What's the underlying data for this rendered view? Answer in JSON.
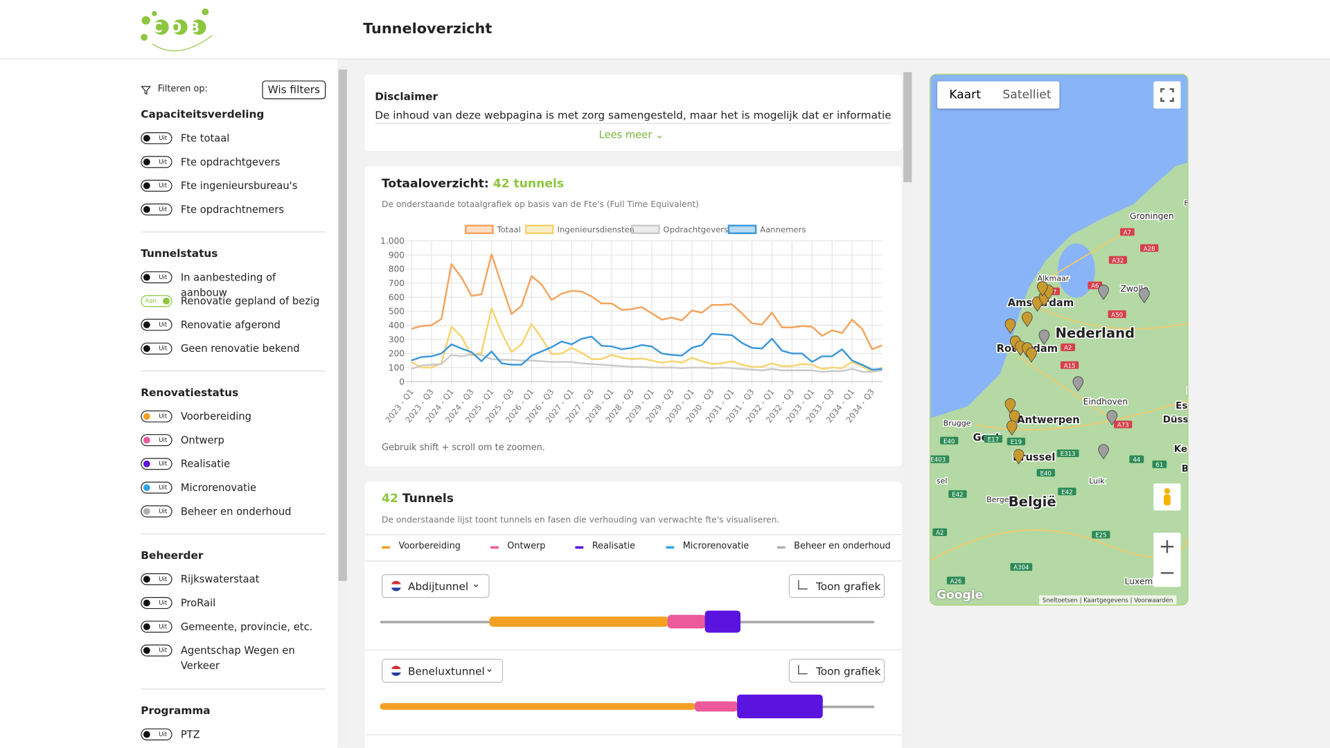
{
  "header": {
    "logo": "COB",
    "title": "Tunneloverzicht"
  },
  "sidebar": {
    "filter_label": "Filteren op:",
    "clear_button": "Wis filters",
    "sections": [
      {
        "title": "Capaciteitsverdeling",
        "items": [
          {
            "state": "Uit",
            "label": "Fte totaal"
          },
          {
            "state": "Uit",
            "label": "Fte opdrachtgevers"
          },
          {
            "state": "Uit",
            "label": "Fte ingenieursbureau's"
          },
          {
            "state": "Uit",
            "label": "Fte opdrachtnemers"
          }
        ]
      },
      {
        "title": "Tunnelstatus",
        "items": [
          {
            "state": "Uit",
            "label": "In aanbesteding of aanbouw"
          },
          {
            "state": "Aan",
            "label": "Renovatie gepland of bezig"
          },
          {
            "state": "Uit",
            "label": "Renovatie afgerond"
          },
          {
            "state": "Uit",
            "label": "Geen renovatie bekend"
          }
        ]
      },
      {
        "title": "Renovatiestatus",
        "items": [
          {
            "state": "Uit",
            "label": "Voorbereiding",
            "color": "#f5a023"
          },
          {
            "state": "Uit",
            "label": "Ontwerp",
            "color": "#ec5a9c"
          },
          {
            "state": "Uit",
            "label": "Realisatie",
            "color": "#5b14e0"
          },
          {
            "state": "Uit",
            "label": "Microrenovatie",
            "color": "#2fa6e8"
          },
          {
            "state": "Uit",
            "label": "Beheer en onderhoud",
            "color": "#b0b0b0"
          }
        ]
      },
      {
        "title": "Beheerder",
        "items": [
          {
            "state": "Uit",
            "label": "Rijkswaterstaat"
          },
          {
            "state": "Uit",
            "label": "ProRail"
          },
          {
            "state": "Uit",
            "label": "Gemeente, provincie, etc."
          },
          {
            "state": "Uit",
            "label": "Agentschap Wegen en Verkeer"
          }
        ]
      },
      {
        "title": "Programma",
        "items": [
          {
            "state": "Uit",
            "label": "PTZ"
          }
        ]
      }
    ]
  },
  "disclaimer": {
    "title": "Disclaimer",
    "text": "De inhoud van deze webpagina is met zorg samengesteld, maar het is mogelijk dat er informatie onjuist",
    "more": "Lees meer"
  },
  "overview": {
    "title": "Totaaloverzicht:",
    "count": "42 tunnels",
    "subtitle": "De onderstaande totaalgrafiek op basis van de Fte's (Full Time Equivalent)",
    "hint": "Gebruik shift + scroll om te zoomen."
  },
  "chart_data": {
    "type": "line",
    "categories": [
      "2023 - Q1",
      null,
      "2023 - Q3",
      null,
      "2024 - Q1",
      null,
      "2024 - Q3",
      null,
      "2025 - Q1",
      null,
      "2025 - Q3",
      null,
      "2026 - Q1",
      null,
      "2026 - Q3",
      null,
      "2027 - Q1",
      null,
      "2027 - Q3",
      null,
      "2028 - Q1",
      null,
      "2028 - Q3",
      null,
      "2029 - Q1",
      null,
      "2029 - Q3",
      null,
      "2030 - Q1",
      null,
      "2030 - Q3",
      null,
      "2031 - Q1",
      null,
      "2031 - Q3",
      null,
      "2032 - Q1",
      null,
      "2032 - Q3",
      null,
      "2033 - Q1",
      null,
      "2033 - Q3",
      null,
      "2034 - Q1",
      null,
      "2034 - Q3",
      null
    ],
    "series": [
      {
        "name": "Totaal",
        "color": "#f5a35c",
        "values": [
          375,
          395,
          400,
          445,
          835,
          740,
          610,
          620,
          905,
          690,
          480,
          540,
          750,
          690,
          580,
          625,
          645,
          640,
          605,
          555,
          555,
          510,
          515,
          530,
          485,
          440,
          455,
          435,
          505,
          490,
          545,
          545,
          550,
          485,
          415,
          405,
          490,
          385,
          385,
          395,
          390,
          325,
          365,
          345,
          440,
          375,
          230,
          258
        ]
      },
      {
        "name": "Ingenieursdiensten",
        "color": "#f7d36b",
        "values": [
          140,
          100,
          100,
          130,
          390,
          320,
          185,
          205,
          520,
          350,
          210,
          265,
          410,
          310,
          195,
          200,
          240,
          205,
          160,
          160,
          190,
          170,
          160,
          165,
          150,
          135,
          145,
          135,
          170,
          145,
          125,
          130,
          145,
          120,
          105,
          105,
          130,
          110,
          110,
          125,
          120,
          90,
          100,
          95,
          140,
          110,
          70,
          100
        ]
      },
      {
        "name": "Opdrachtgevers",
        "color": "#c9c9c9",
        "values": [
          90,
          115,
          120,
          125,
          190,
          180,
          195,
          190,
          160,
          155,
          155,
          150,
          150,
          145,
          140,
          140,
          140,
          130,
          125,
          120,
          115,
          110,
          105,
          105,
          100,
          100,
          100,
          95,
          100,
          100,
          95,
          100,
          95,
          90,
          85,
          80,
          90,
          80,
          80,
          80,
          80,
          70,
          75,
          75,
          90,
          70,
          70,
          80
        ]
      },
      {
        "name": "Aannemers",
        "color": "#3b97d9",
        "values": [
          150,
          175,
          180,
          200,
          265,
          235,
          210,
          145,
          215,
          130,
          120,
          120,
          185,
          215,
          245,
          285,
          265,
          305,
          320,
          255,
          250,
          230,
          240,
          260,
          250,
          200,
          190,
          185,
          240,
          260,
          340,
          335,
          330,
          275,
          240,
          235,
          305,
          220,
          200,
          200,
          140,
          180,
          180,
          230,
          150,
          120,
          85,
          90
        ]
      }
    ],
    "ylim": [
      0,
      1000
    ],
    "yticks": [
      0,
      100,
      200,
      300,
      400,
      500,
      600,
      700,
      800,
      900,
      {
        "value": 1000,
        "label": "1.000"
      }
    ],
    "grid": true,
    "legend": "top"
  },
  "tunnels": {
    "count": "42",
    "title": "Tunnels",
    "subtitle": "De onderstaande lijst toont tunnels en fasen die verhouding van verwachte fte's visualiseren.",
    "legend": [
      {
        "name": "Voorbereiding",
        "color": "#f5a023"
      },
      {
        "name": "Ontwerp",
        "color": "#ec5a9c"
      },
      {
        "name": "Realisatie",
        "color": "#5b14e0"
      },
      {
        "name": "Microrenovatie",
        "color": "#2fa6e8"
      },
      {
        "name": "Beheer en onderhoud",
        "color": "#b0b0b0"
      }
    ],
    "rows": [
      {
        "name": "Abdijtunnel",
        "button": "Toon grafiek"
      },
      {
        "name": "Beneluxtunnel",
        "button": "Toon grafiek"
      }
    ]
  },
  "map": {
    "tabs": [
      "Kaart",
      "Satelliet"
    ],
    "places": [
      "Groningen",
      "Alkmaar",
      "Zwolle",
      "Amsterdam",
      "Nederland",
      "Rotterdam",
      "Eindhoven",
      "Essen",
      "Düsseldorf",
      "Antwerpen",
      "Brugge",
      "Gent",
      "Keulen",
      "Brussel",
      "Bon",
      "Luik",
      "Bergen",
      "België",
      "Luxemburg",
      "Em",
      "sel",
      "D"
    ],
    "roads": [
      "A7",
      "A28",
      "A32",
      "A6",
      "A7",
      "A50",
      "A2",
      "A15",
      "A73",
      "E40",
      "E17",
      "E19",
      "E313",
      "44",
      "61",
      "E40",
      "E42",
      "E42",
      "E25",
      "A2",
      "A304",
      "A26",
      "E403"
    ],
    "logo": "Google",
    "attribution": [
      "Sneltoetsen",
      "Kaartgegevens",
      "Voorwaarden"
    ]
  }
}
